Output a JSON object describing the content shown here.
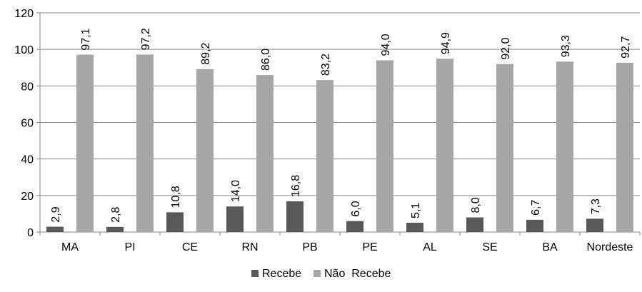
{
  "chart_data": {
    "type": "bar",
    "title": "",
    "xlabel": "",
    "ylabel": "",
    "ylim": [
      0,
      120
    ],
    "yticks": [
      0,
      20,
      40,
      60,
      80,
      100,
      120
    ],
    "grid": true,
    "legend_position": "bottom",
    "categories": [
      "MA",
      "PI",
      "CE",
      "RN",
      "PB",
      "PE",
      "AL",
      "SE",
      "BA",
      "Nordeste"
    ],
    "series": [
      {
        "name": "Recebe",
        "color": "#595959",
        "values": [
          2.9,
          2.8,
          10.8,
          14.0,
          16.8,
          6.0,
          5.1,
          8.0,
          6.7,
          7.3
        ],
        "labels": [
          "2,9",
          "2,8",
          "10,8",
          "14,0",
          "16,8",
          "6,0",
          "5,1",
          "8,0",
          "6,7",
          "7,3"
        ]
      },
      {
        "name": "Não  Recebe",
        "color": "#a6a6a6",
        "values": [
          97.1,
          97.2,
          89.2,
          86.0,
          83.2,
          94.0,
          94.9,
          92.0,
          93.3,
          92.7
        ],
        "labels": [
          "97,1",
          "97,2",
          "89,2",
          "86,0",
          "83,2",
          "94,0",
          "94,9",
          "92,0",
          "93,3",
          "92,7"
        ]
      }
    ]
  }
}
